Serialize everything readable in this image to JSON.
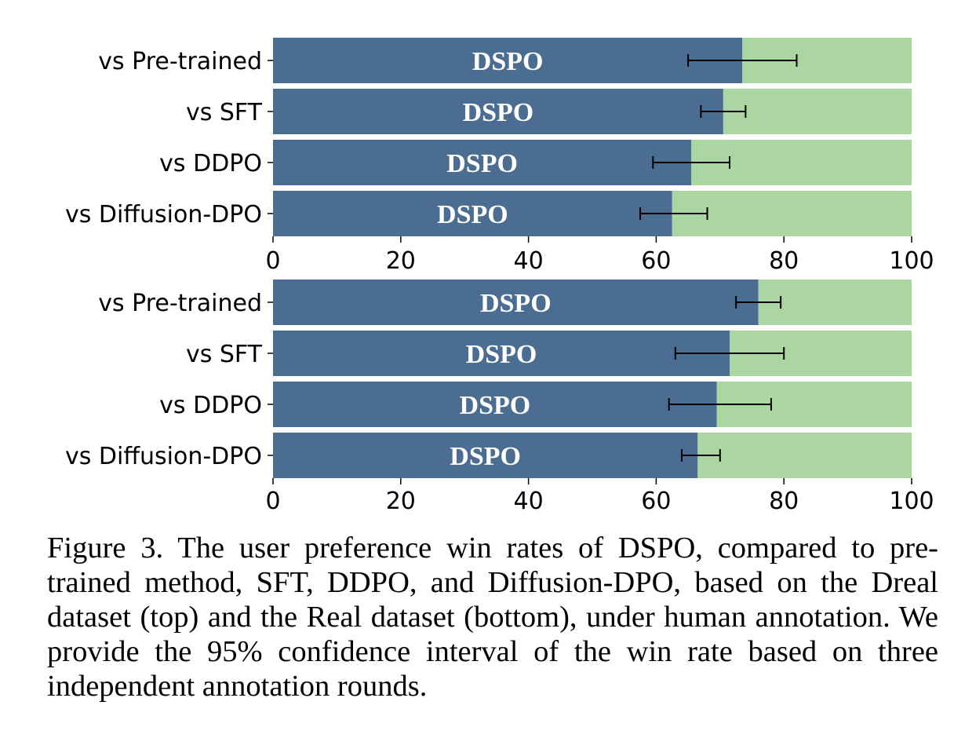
{
  "colors": {
    "win": "#4a6d91",
    "lose": "#acd6a1",
    "errorbar": "#000000",
    "bar_label": "#ffffff"
  },
  "chart_data": [
    {
      "type": "bar",
      "orientation": "horizontal",
      "stacked": true,
      "categories": [
        "vs Pre-trained",
        "vs SFT",
        "vs DDPO",
        "vs Diffusion-DPO"
      ],
      "series": [
        {
          "name": "DSPO",
          "values": [
            73.5,
            70.5,
            65.5,
            62.5
          ],
          "ci_low": [
            65,
            67,
            59.5,
            57.5
          ],
          "ci_high": [
            82,
            74,
            71.5,
            68
          ]
        },
        {
          "values": [
            26.5,
            29.5,
            34.5,
            37.5
          ]
        }
      ],
      "bar_text": "DSPO",
      "xlim": [
        0,
        100
      ],
      "xticks": [
        0,
        20,
        40,
        60,
        80,
        100
      ],
      "xlabel": "",
      "ylabel": "",
      "title": ""
    },
    {
      "type": "bar",
      "orientation": "horizontal",
      "stacked": true,
      "categories": [
        "vs Pre-trained",
        "vs SFT",
        "vs DDPO",
        "vs Diffusion-DPO"
      ],
      "series": [
        {
          "name": "DSPO",
          "values": [
            76,
            71.5,
            69.5,
            66.5
          ],
          "ci_low": [
            72.5,
            63,
            62,
            64
          ],
          "ci_high": [
            79.5,
            80,
            78,
            70
          ]
        },
        {
          "values": [
            24,
            28.5,
            30.5,
            33.5
          ]
        }
      ],
      "bar_text": "DSPO",
      "xlim": [
        0,
        100
      ],
      "xticks": [
        0,
        20,
        40,
        60,
        80,
        100
      ],
      "xlabel": "",
      "ylabel": "",
      "title": ""
    }
  ],
  "caption": "Figure 3.  The user preference win rates of DSPO, compared to pre-trained method, SFT, DDPO, and Diffusion-DPO, based on the Dreal dataset (top) and the Real dataset (bottom), under human annotation. We provide the 95% confidence interval of the win rate based on three independent annotation rounds."
}
